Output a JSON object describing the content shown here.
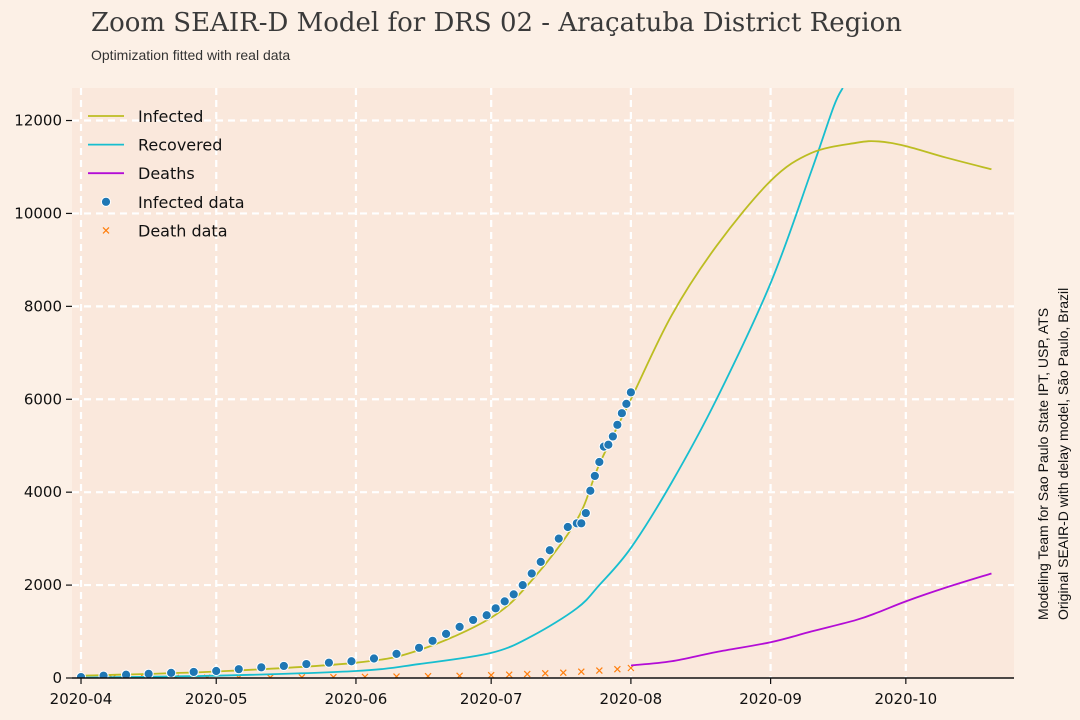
{
  "header": {
    "title": "Zoom SEAIR-D Model for DRS 02 - Araçatuba District Region",
    "subtitle": "Optimization fitted with real data"
  },
  "side_note": {
    "line1": "Modeling Team for Sao Paulo State IPT, USP, ATS",
    "line2": "Original SEAIR-D with delay model, São Paulo, Brazil"
  },
  "colors": {
    "background": "#fcf0e6",
    "plot_background": "#fae8dc",
    "grid": "#ffffff",
    "infected": "#bcbd22",
    "recovered": "#17becf",
    "deaths": "#b30cd6",
    "infected_data": "#1f77b4",
    "death_data": "#ff7f0e"
  },
  "chart_data": {
    "type": "line",
    "title": "Zoom SEAIR-D Model for DRS 02 - Araçatuba District Region",
    "subtitle": "Optimization fitted with real data",
    "xlabel": "",
    "ylabel": "",
    "x_start": "2020-03-30",
    "x_end": "2020-10-25",
    "ylim": [
      0,
      12700
    ],
    "grid": true,
    "legend": "top-left",
    "x_ticks": [
      {
        "date": "2020-04-01",
        "label": "2020-04"
      },
      {
        "date": "2020-05-01",
        "label": "2020-05"
      },
      {
        "date": "2020-06-01",
        "label": "2020-06"
      },
      {
        "date": "2020-07-01",
        "label": "2020-07"
      },
      {
        "date": "2020-08-01",
        "label": "2020-08"
      },
      {
        "date": "2020-09-01",
        "label": "2020-09"
      },
      {
        "date": "2020-10-01",
        "label": "2020-10"
      }
    ],
    "y_ticks": [
      0,
      2000,
      4000,
      6000,
      8000,
      10000,
      12000
    ],
    "series": [
      {
        "name": "Infected",
        "kind": "line",
        "x": [
          "2020-04-01",
          "2020-05-01",
          "2020-06-01",
          "2020-06-15",
          "2020-07-01",
          "2020-07-10",
          "2020-07-20",
          "2020-07-25",
          "2020-08-01",
          "2020-08-10",
          "2020-08-20",
          "2020-09-01",
          "2020-09-10",
          "2020-09-20",
          "2020-09-25",
          "2020-10-01",
          "2020-10-10",
          "2020-10-20"
        ],
        "values": [
          50,
          140,
          330,
          600,
          1300,
          2100,
          3400,
          4600,
          6000,
          7800,
          9300,
          10700,
          11300,
          11520,
          11550,
          11450,
          11200,
          10950
        ]
      },
      {
        "name": "Recovered",
        "kind": "line",
        "x": [
          "2020-04-01",
          "2020-05-01",
          "2020-06-01",
          "2020-06-15",
          "2020-07-01",
          "2020-07-10",
          "2020-07-20",
          "2020-07-25",
          "2020-08-01",
          "2020-08-10",
          "2020-08-20",
          "2020-09-01",
          "2020-09-10",
          "2020-09-15",
          "2020-09-17"
        ],
        "values": [
          10,
          50,
          150,
          300,
          540,
          900,
          1500,
          2000,
          2800,
          4200,
          6000,
          8500,
          10900,
          12300,
          12700
        ]
      },
      {
        "name": "Deaths",
        "kind": "line",
        "x": [
          "2020-08-01",
          "2020-08-10",
          "2020-08-20",
          "2020-09-01",
          "2020-09-10",
          "2020-09-20",
          "2020-09-25",
          "2020-10-01",
          "2020-10-10",
          "2020-10-20"
        ],
        "values": [
          270,
          360,
          560,
          770,
          1000,
          1250,
          1420,
          1650,
          1950,
          2250
        ]
      },
      {
        "name": "Infected data",
        "kind": "scatter",
        "x": [
          "2020-04-01",
          "2020-04-06",
          "2020-04-11",
          "2020-04-16",
          "2020-04-21",
          "2020-04-26",
          "2020-05-01",
          "2020-05-06",
          "2020-05-11",
          "2020-05-16",
          "2020-05-21",
          "2020-05-26",
          "2020-05-31",
          "2020-06-05",
          "2020-06-10",
          "2020-06-15",
          "2020-06-18",
          "2020-06-21",
          "2020-06-24",
          "2020-06-27",
          "2020-06-30",
          "2020-07-02",
          "2020-07-04",
          "2020-07-06",
          "2020-07-08",
          "2020-07-10",
          "2020-07-12",
          "2020-07-14",
          "2020-07-16",
          "2020-07-18",
          "2020-07-20",
          "2020-07-21",
          "2020-07-22",
          "2020-07-23",
          "2020-07-24",
          "2020-07-25",
          "2020-07-26",
          "2020-07-27",
          "2020-07-28",
          "2020-07-29",
          "2020-07-30",
          "2020-07-31",
          "2020-08-01"
        ],
        "values": [
          20,
          50,
          70,
          90,
          110,
          130,
          150,
          190,
          230,
          260,
          300,
          330,
          360,
          420,
          520,
          650,
          800,
          950,
          1100,
          1250,
          1350,
          1500,
          1650,
          1800,
          2000,
          2250,
          2500,
          2750,
          3000,
          3250,
          3330,
          3330,
          3550,
          4030,
          4350,
          4650,
          4980,
          5020,
          5200,
          5450,
          5700,
          5900,
          6150
        ]
      },
      {
        "name": "Death data",
        "kind": "scatter",
        "x": [
          "2020-04-01",
          "2020-04-08",
          "2020-04-15",
          "2020-04-22",
          "2020-04-29",
          "2020-05-06",
          "2020-05-13",
          "2020-05-20",
          "2020-05-27",
          "2020-06-03",
          "2020-06-10",
          "2020-06-17",
          "2020-06-24",
          "2020-07-01",
          "2020-07-05",
          "2020-07-09",
          "2020-07-13",
          "2020-07-17",
          "2020-07-21",
          "2020-07-25",
          "2020-07-29",
          "2020-08-01"
        ],
        "values": [
          0,
          2,
          3,
          5,
          6,
          8,
          10,
          14,
          18,
          24,
          30,
          38,
          48,
          60,
          72,
          85,
          100,
          115,
          135,
          160,
          190,
          215
        ]
      }
    ]
  }
}
